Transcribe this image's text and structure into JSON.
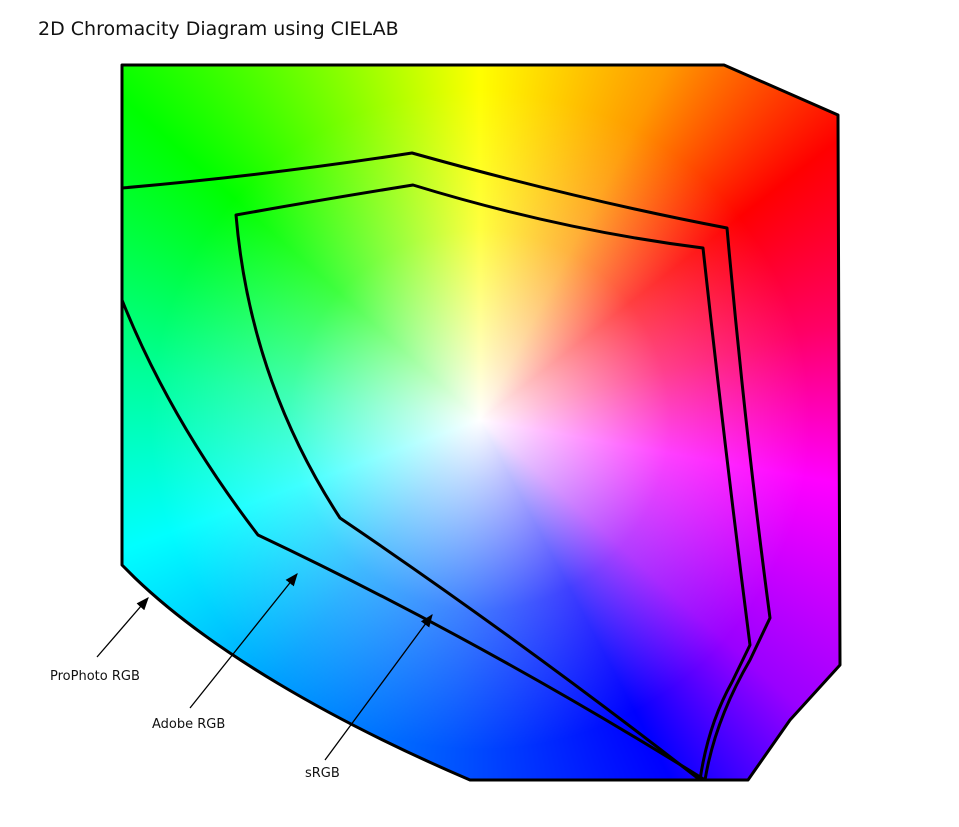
{
  "title": "2D Chromacity Diagram using CIELAB",
  "labels": [
    "ProPhoto RGB",
    "Adobe RGB",
    "sRGB"
  ]
}
